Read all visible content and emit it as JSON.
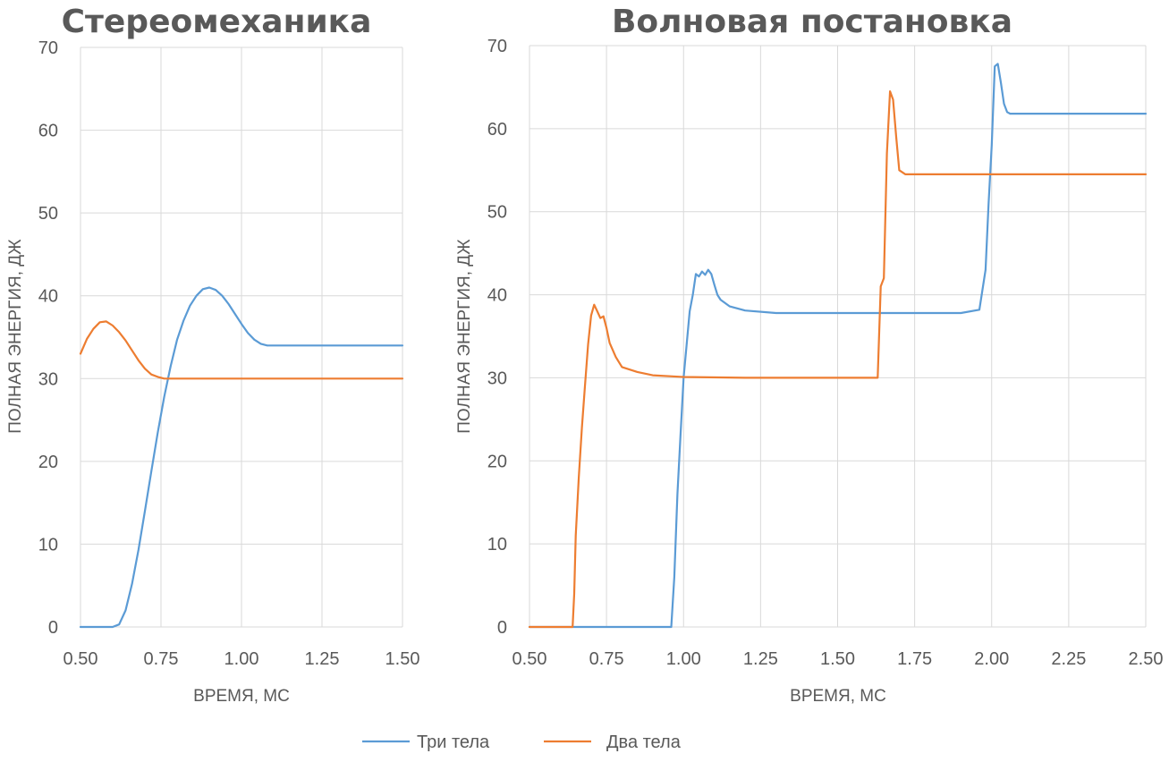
{
  "chart_data": [
    {
      "type": "line",
      "title": "Стереомеханика",
      "xlabel": "ВРЕМЯ, МС",
      "ylabel": "ПОЛНАЯ ЭНЕРГИЯ, ДЖ",
      "xlim": [
        0.5,
        1.5
      ],
      "ylim": [
        0,
        70
      ],
      "xticks": [
        "0.50",
        "0.75",
        "1.00",
        "1.25",
        "1.50"
      ],
      "yticks": [
        "0",
        "10",
        "20",
        "30",
        "40",
        "50",
        "60",
        "70"
      ],
      "grid": true,
      "series": [
        {
          "name": "Три тела",
          "color": "#5b9bd5",
          "x": [
            0.5,
            0.6,
            0.62,
            0.64,
            0.66,
            0.68,
            0.7,
            0.72,
            0.74,
            0.76,
            0.78,
            0.8,
            0.82,
            0.84,
            0.86,
            0.88,
            0.9,
            0.92,
            0.94,
            0.96,
            0.98,
            1.0,
            1.02,
            1.04,
            1.06,
            1.08,
            1.1,
            1.2,
            1.3,
            1.4,
            1.5
          ],
          "y": [
            0,
            0,
            0.3,
            2.0,
            5.2,
            9.3,
            14.0,
            18.8,
            23.5,
            27.8,
            31.5,
            34.7,
            37.0,
            38.8,
            40.0,
            40.8,
            41.0,
            40.7,
            40.0,
            39.0,
            37.8,
            36.6,
            35.5,
            34.7,
            34.2,
            34.0,
            34.0,
            34.0,
            34.0,
            34.0,
            34.0
          ]
        },
        {
          "name": "Два тела",
          "color": "#ed7d31",
          "x": [
            0.5,
            0.52,
            0.54,
            0.56,
            0.58,
            0.6,
            0.62,
            0.64,
            0.66,
            0.68,
            0.7,
            0.72,
            0.74,
            0.76,
            0.78,
            0.8,
            0.9,
            1.0,
            1.1,
            1.2,
            1.3,
            1.4,
            1.5
          ],
          "y": [
            33.0,
            34.8,
            36.0,
            36.8,
            36.9,
            36.4,
            35.6,
            34.6,
            33.4,
            32.2,
            31.2,
            30.5,
            30.2,
            30.0,
            30.0,
            30.0,
            30.0,
            30.0,
            30.0,
            30.0,
            30.0,
            30.0,
            30.0
          ]
        }
      ]
    },
    {
      "type": "line",
      "title": "Волновая постановка",
      "xlabel": "ВРЕМЯ, МС",
      "ylabel": "ПОЛНАЯ ЭНЕРГИЯ, ДЖ",
      "xlim": [
        0.5,
        2.5
      ],
      "ylim": [
        0,
        70
      ],
      "xticks": [
        "0.50",
        "0.75",
        "1.00",
        "1.25",
        "1.50",
        "1.75",
        "2.00",
        "2.25",
        "2.50"
      ],
      "yticks": [
        "0",
        "10",
        "20",
        "30",
        "40",
        "50",
        "60",
        "70"
      ],
      "grid": true,
      "series": [
        {
          "name": "Три тела",
          "color": "#5b9bd5",
          "x": [
            0.5,
            0.96,
            0.97,
            0.98,
            0.99,
            1.0,
            1.01,
            1.02,
            1.03,
            1.04,
            1.05,
            1.06,
            1.07,
            1.08,
            1.09,
            1.1,
            1.11,
            1.12,
            1.15,
            1.2,
            1.3,
            1.5,
            1.7,
            1.9,
            1.96,
            1.98,
            1.99,
            2.0,
            2.01,
            2.02,
            2.03,
            2.04,
            2.05,
            2.06,
            2.1,
            2.3,
            2.5
          ],
          "y": [
            0,
            0,
            6,
            16,
            23,
            30,
            34,
            38,
            40,
            42.5,
            42.2,
            42.8,
            42.4,
            43.0,
            42.5,
            41.2,
            40.0,
            39.4,
            38.6,
            38.1,
            37.8,
            37.8,
            37.8,
            37.8,
            38.2,
            43.0,
            51.0,
            58.0,
            67.5,
            67.8,
            65.5,
            63.0,
            62.0,
            61.8,
            61.8,
            61.8,
            61.8
          ]
        },
        {
          "name": "Два тела",
          "color": "#ed7d31",
          "x": [
            0.5,
            0.64,
            0.645,
            0.65,
            0.66,
            0.67,
            0.68,
            0.69,
            0.7,
            0.71,
            0.72,
            0.73,
            0.74,
            0.75,
            0.76,
            0.78,
            0.8,
            0.85,
            0.9,
            1.0,
            1.2,
            1.4,
            1.6,
            1.63,
            1.64,
            1.65,
            1.66,
            1.67,
            1.68,
            1.69,
            1.7,
            1.72,
            1.8,
            2.0,
            2.2,
            2.5
          ],
          "y": [
            0,
            0,
            4,
            11,
            18,
            24,
            29,
            34,
            37.5,
            38.8,
            38.0,
            37.2,
            37.4,
            36.0,
            34.2,
            32.5,
            31.3,
            30.7,
            30.3,
            30.1,
            30.0,
            30.0,
            30.0,
            30.0,
            41.0,
            42.0,
            57.0,
            64.5,
            63.5,
            59.0,
            55.0,
            54.5,
            54.5,
            54.5,
            54.5,
            54.5
          ]
        }
      ]
    }
  ],
  "legend": {
    "placement": "bottom",
    "items": [
      {
        "label": "Три тела",
        "color": "#5b9bd5"
      },
      {
        "label": "Два тела",
        "color": "#ed7d31"
      }
    ]
  }
}
